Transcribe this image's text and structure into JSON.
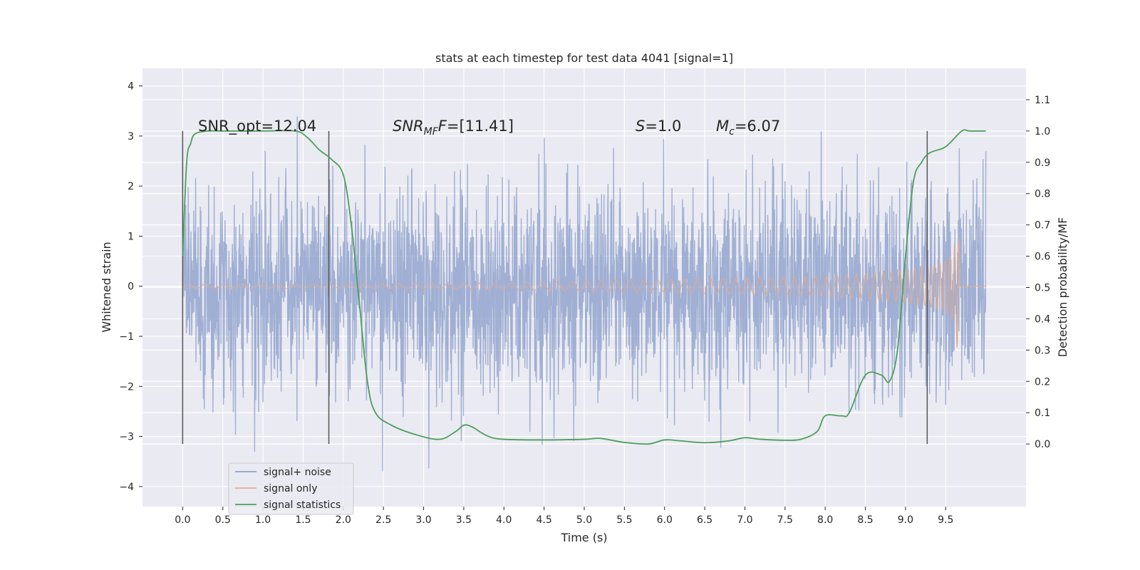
{
  "chart_data": {
    "type": "line",
    "title": "stats at each timestep for test data 4041 [signal=1]",
    "xlabel": "Time (s)",
    "ylabel": "Whitened strain",
    "ylabel_right": "Detection probability/MF",
    "xlim": [
      -0.5,
      10.5
    ],
    "ylim": [
      -4.4,
      4.35
    ],
    "ylim_right": [
      -0.2,
      1.2
    ],
    "x_ticks": [
      "0.0",
      "0.5",
      "1.0",
      "1.5",
      "2.0",
      "2.5",
      "3.0",
      "3.5",
      "4.0",
      "4.5",
      "5.0",
      "5.5",
      "6.0",
      "6.5",
      "7.0",
      "7.5",
      "8.0",
      "8.5",
      "9.0",
      "9.5"
    ],
    "y_ticks": [
      "−4",
      "−3",
      "−2",
      "−1",
      "0",
      "1",
      "2",
      "3",
      "4"
    ],
    "y_ticks_right": [
      "0.0",
      "0.1",
      "0.2",
      "0.3",
      "0.4",
      "0.5",
      "0.6",
      "0.7",
      "0.8",
      "0.9",
      "1.0",
      "1.1"
    ],
    "grid": true,
    "legend_position": "lower-left",
    "annotations": {
      "snr_opt": "SNR_opt=12.04",
      "snr_mf_sym": "SNR",
      "snr_mf_sub": "MF",
      "snr_mf_val": "=[11.41]",
      "s_sym": "S",
      "s_val": "=1.0",
      "mc_sym": "M",
      "mc_sub": "c",
      "mc_val": "=6.07"
    },
    "vertical_markers": [
      0.0,
      1.82,
      9.27
    ],
    "series": [
      {
        "name": "signal+ noise",
        "color": "#8da0cb",
        "x_range": [
          0.0,
          10.0
        ],
        "amplitude_std": 1.0
      },
      {
        "name": "signal only",
        "color": "#e4a98c",
        "x": [
          0.0,
          2.0,
          4.0,
          5.0,
          6.0,
          7.0,
          8.0,
          8.5,
          9.0,
          9.3,
          9.5,
          9.6,
          9.66,
          9.68,
          10.0
        ],
        "envelope": [
          0.04,
          0.04,
          0.07,
          0.1,
          0.13,
          0.16,
          0.2,
          0.25,
          0.33,
          0.4,
          0.5,
          0.7,
          1.45,
          0.0,
          0.0
        ]
      },
      {
        "name": "signal statistics",
        "color": "#4c9f5a",
        "axis": "right",
        "x": [
          0.0,
          0.05,
          0.1,
          0.15,
          0.3,
          0.5,
          1.0,
          1.4,
          1.55,
          1.7,
          1.85,
          2.0,
          2.1,
          2.2,
          2.3,
          2.4,
          2.6,
          2.9,
          3.2,
          3.4,
          3.5,
          3.6,
          3.8,
          4.0,
          4.5,
          5.0,
          5.2,
          5.5,
          5.8,
          6.0,
          6.2,
          6.5,
          6.8,
          7.0,
          7.2,
          7.5,
          7.7,
          7.9,
          8.0,
          8.2,
          8.3,
          8.5,
          8.7,
          8.8,
          8.9,
          9.0,
          9.1,
          9.2,
          9.3,
          9.5,
          9.7,
          9.8,
          10.0
        ],
        "y": [
          0.6,
          0.9,
          0.96,
          0.99,
          1.0,
          1.0,
          1.0,
          1.0,
          0.98,
          0.94,
          0.91,
          0.86,
          0.7,
          0.45,
          0.2,
          0.1,
          0.06,
          0.03,
          0.015,
          0.04,
          0.06,
          0.055,
          0.025,
          0.015,
          0.013,
          0.015,
          0.018,
          0.005,
          0.0,
          0.013,
          0.01,
          0.004,
          0.01,
          0.02,
          0.015,
          0.012,
          0.015,
          0.04,
          0.09,
          0.09,
          0.1,
          0.22,
          0.22,
          0.2,
          0.3,
          0.6,
          0.84,
          0.9,
          0.93,
          0.95,
          1.0,
          1.0,
          1.0
        ]
      }
    ]
  }
}
